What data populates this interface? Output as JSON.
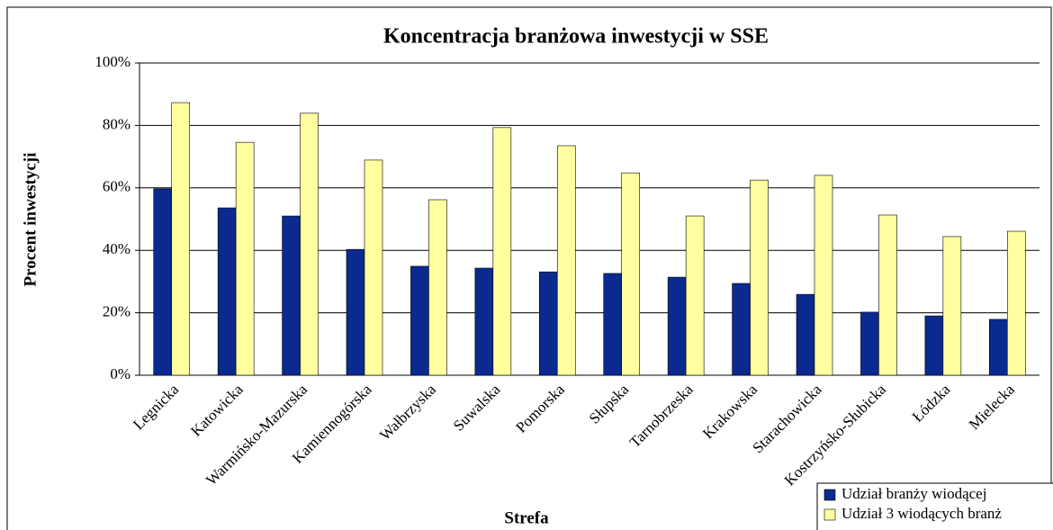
{
  "chart_data": {
    "type": "bar",
    "title": "Koncentracja branżowa inwestycji w SSE",
    "x_label": "Strefa",
    "y_label": "Procent inwestycji",
    "categories": [
      "Legnicka",
      "Katowicka",
      "Warmińsko-Mazurska",
      "Kamiennogórska",
      "Wałbrzyska",
      "Suwalska",
      "Pomorska",
      "Słupska",
      "Tarnobrzeska",
      "Krakowska",
      "Starachowicka",
      "Kostrzyńsko-Słubicka",
      "Łódzka",
      "Mielecka"
    ],
    "series": [
      {
        "name": "Udział branży wiodącej",
        "color": "#0a2a8f",
        "values": [
          59.7,
          53.6,
          51,
          40.3,
          34.9,
          34.3,
          33.1,
          32.6,
          31.4,
          29.4,
          25.9,
          20.2,
          19,
          17.9
        ]
      },
      {
        "name": "Udział 3 wiodących branż",
        "color": "#ffffa0",
        "values": [
          87.3,
          74.6,
          83.9,
          68.9,
          56.2,
          79.3,
          73.5,
          64.8,
          51,
          62.5,
          64,
          51.3,
          44.4,
          46.1
        ]
      }
    ],
    "ylim": [
      0,
      100
    ],
    "yticks": [
      {
        "value": 0,
        "label": "0%"
      },
      {
        "value": 20,
        "label": "20%"
      },
      {
        "value": 40,
        "label": "40%"
      },
      {
        "value": 60,
        "label": "60%"
      },
      {
        "value": 80,
        "label": "80%"
      },
      {
        "value": 100,
        "label": "100%"
      }
    ],
    "grid": true,
    "legend": "bottom-right"
  }
}
